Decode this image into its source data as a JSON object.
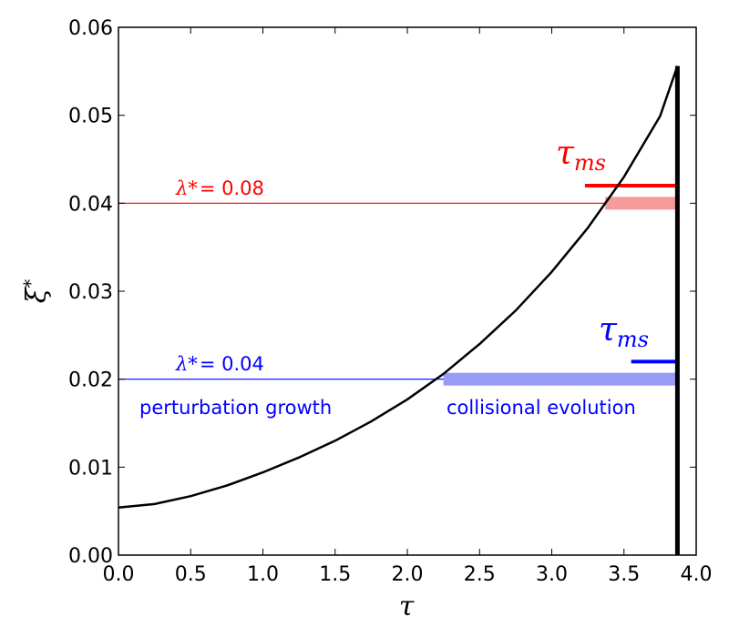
{
  "chart_data": {
    "type": "line",
    "xlabel": "τ",
    "ylabel": "ξ*",
    "xlim": [
      0.0,
      4.0
    ],
    "ylim": [
      0.0,
      0.06
    ],
    "x_ticks": [
      "0.0",
      "0.5",
      "1.0",
      "1.5",
      "2.0",
      "2.5",
      "3.0",
      "3.5",
      "4.0"
    ],
    "y_ticks": [
      "0.00",
      "0.01",
      "0.02",
      "0.03",
      "0.04",
      "0.05",
      "0.06"
    ],
    "x_tick_values": [
      0.0,
      0.5,
      1.0,
      1.5,
      2.0,
      2.5,
      3.0,
      3.5,
      4.0
    ],
    "y_tick_values": [
      0.0,
      0.01,
      0.02,
      0.03,
      0.04,
      0.05,
      0.06
    ],
    "curve": {
      "color": "#000000",
      "x": [
        0.0,
        0.25,
        0.5,
        0.75,
        1.0,
        1.25,
        1.5,
        1.75,
        2.0,
        2.25,
        2.5,
        2.75,
        3.0,
        3.25,
        3.5,
        3.75,
        3.87
      ],
      "y": [
        0.0054,
        0.0058,
        0.0067,
        0.0079,
        0.0094,
        0.0111,
        0.013,
        0.0152,
        0.0177,
        0.0206,
        0.024,
        0.0278,
        0.0322,
        0.0372,
        0.043,
        0.0499,
        0.0556
      ]
    },
    "vertical_line": {
      "x": 3.87,
      "y_from": 0.0,
      "y_to": 0.0556,
      "color": "#000000"
    },
    "series": [
      {
        "lambda_label": "λ*",
        "lambda_value": "= 0.08",
        "color": "#ff0000",
        "band_color": "#f79a9a",
        "y": 0.04,
        "growth_until": 3.37,
        "band": [
          3.37,
          3.87
        ],
        "tau_ms_y": 0.042,
        "tau_ms_x": [
          3.23,
          3.87
        ]
      },
      {
        "lambda_label": "λ*",
        "lambda_value": "= 0.04",
        "color": "#0000ff",
        "band_color": "#9a9af7",
        "y": 0.02,
        "growth_until": 2.25,
        "band": [
          2.25,
          3.87
        ],
        "tau_ms_y": 0.022,
        "tau_ms_x": [
          3.55,
          3.87
        ]
      }
    ],
    "annotations": {
      "tau_ms_main": "τ",
      "tau_ms_sub": "ms",
      "perturbation_growth": "perturbation growth",
      "collisional_evolution": "collisional evolution"
    },
    "grid": false
  }
}
